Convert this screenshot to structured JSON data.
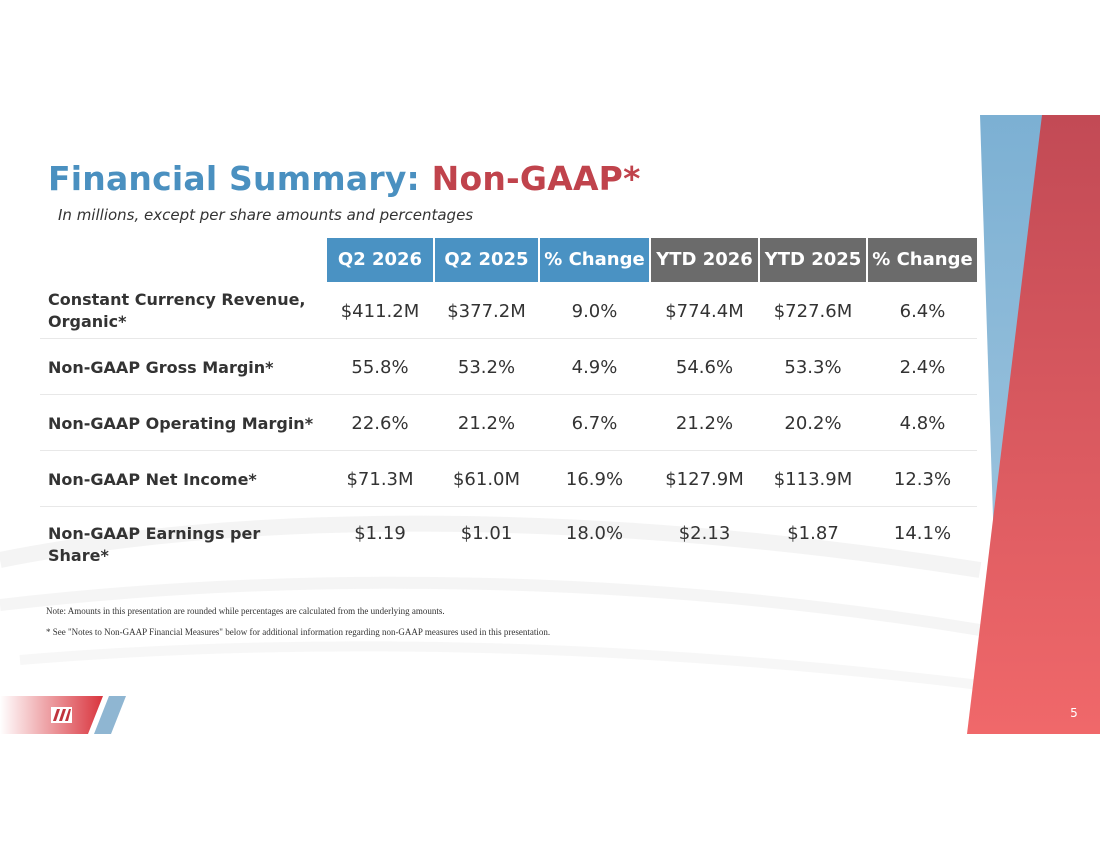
{
  "title": {
    "main": "Financial Summary:",
    "accent": "Non-GAAP*"
  },
  "subtitle": "In millions, except per share amounts and percentages",
  "columns": [
    {
      "label": "Q2 2026",
      "group": "quarter"
    },
    {
      "label": "Q2 2025",
      "group": "quarter"
    },
    {
      "label": "% Change",
      "group": "quarter"
    },
    {
      "label": "YTD 2026",
      "group": "ytd"
    },
    {
      "label": "YTD 2025",
      "group": "ytd"
    },
    {
      "label": "% Change",
      "group": "ytd"
    }
  ],
  "rows": [
    {
      "label": "Constant Currency Revenue, Organic*",
      "values": [
        "$411.2M",
        "$377.2M",
        "9.0%",
        "$774.4M",
        "$727.6M",
        "6.4%"
      ]
    },
    {
      "label": "Non-GAAP Gross Margin*",
      "values": [
        "55.8%",
        "53.2%",
        "4.9%",
        "54.6%",
        "53.3%",
        "2.4%"
      ]
    },
    {
      "label": "Non-GAAP Operating Margin*",
      "values": [
        "22.6%",
        "21.2%",
        "6.7%",
        "21.2%",
        "20.2%",
        "4.8%"
      ]
    },
    {
      "label": "Non-GAAP Net Income*",
      "values": [
        "$71.3M",
        "$61.0M",
        "16.9%",
        "$127.9M",
        "$113.9M",
        "12.3%"
      ]
    },
    {
      "label": "Non-GAAP Earnings per Share*",
      "values": [
        "$1.19",
        "$1.01",
        "18.0%",
        "$2.13",
        "$1.87",
        "14.1%"
      ]
    }
  ],
  "notes": [
    "Note: Amounts in this presentation are rounded while percentages are calculated from the underlying amounts.",
    "* See \"Notes to Non-GAAP Financial Measures\" below for additional information regarding non-GAAP measures used in this presentation."
  ],
  "page_number": "5",
  "colors": {
    "title_blue": "#4a90c0",
    "title_red": "#c0434c",
    "header_blue": "#4a92c3",
    "header_gray": "#6b6b6b",
    "accent_red": "#e8565e",
    "accent_blue": "#7fb0d2"
  },
  "icons": [
    "company-logo-icon"
  ]
}
